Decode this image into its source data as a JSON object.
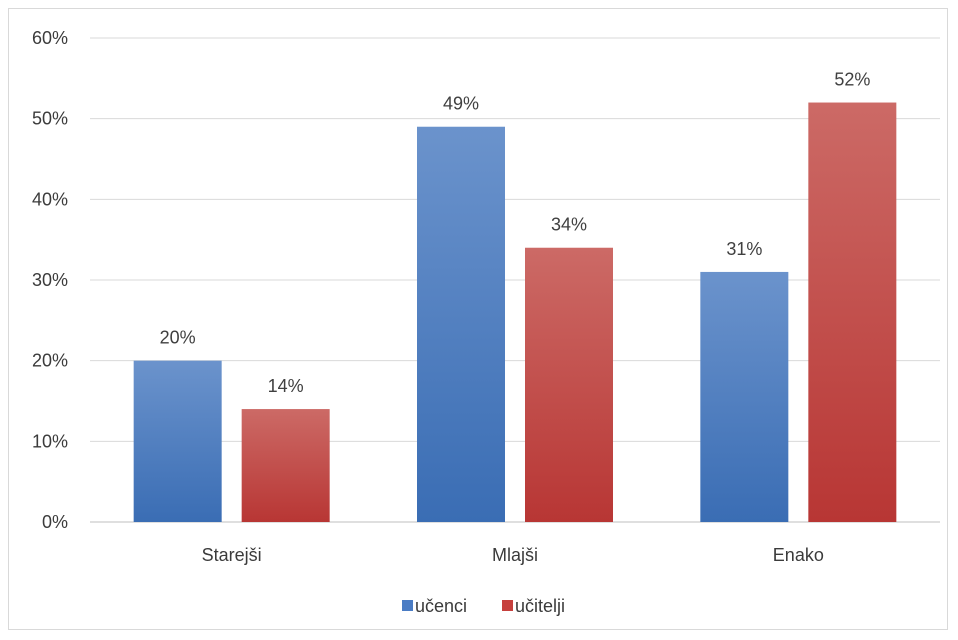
{
  "chart_data": {
    "type": "bar",
    "categories": [
      "Starejši",
      "Mlajši",
      "Enako"
    ],
    "series": [
      {
        "name": "učenci",
        "values": [
          20,
          49,
          31
        ],
        "color": "#4a7cc4"
      },
      {
        "name": "učitelji",
        "values": [
          14,
          34,
          52
        ],
        "color": "#c6403d"
      }
    ],
    "ylim": [
      0,
      60
    ],
    "yticks": [
      0,
      10,
      20,
      30,
      40,
      50,
      60
    ],
    "y_unit": "%",
    "grid": true,
    "legend_position": "bottom"
  }
}
